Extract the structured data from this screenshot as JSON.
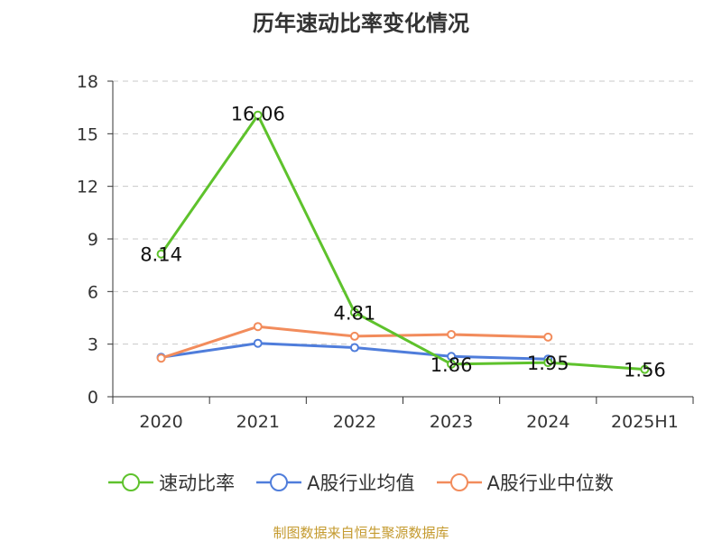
{
  "chart_data": {
    "type": "line",
    "title": "历年速动比率变化情况",
    "categories": [
      "2020",
      "2021",
      "2022",
      "2023",
      "2024",
      "2025H1"
    ],
    "ylim": [
      0,
      18
    ],
    "yticks": [
      0,
      3,
      6,
      9,
      12,
      15,
      18
    ],
    "grid": true,
    "legend_position": "bottom",
    "series": [
      {
        "name": "速动比率",
        "color": "#5ec22c",
        "values": [
          8.14,
          16.06,
          4.81,
          1.86,
          1.95,
          1.56
        ],
        "labels": [
          "8.14",
          "16.06",
          "4.81",
          "1.86",
          "1.95",
          "1.56"
        ]
      },
      {
        "name": "A股行业均值",
        "color": "#4f7ddb",
        "values": [
          2.25,
          3.05,
          2.8,
          2.3,
          2.15,
          null
        ],
        "labels": []
      },
      {
        "name": "A股行业中位数",
        "color": "#f28c5c",
        "values": [
          2.2,
          4.0,
          3.45,
          3.55,
          3.4,
          null
        ],
        "labels": []
      }
    ]
  },
  "source": "制图数据来自恒生聚源数据库"
}
